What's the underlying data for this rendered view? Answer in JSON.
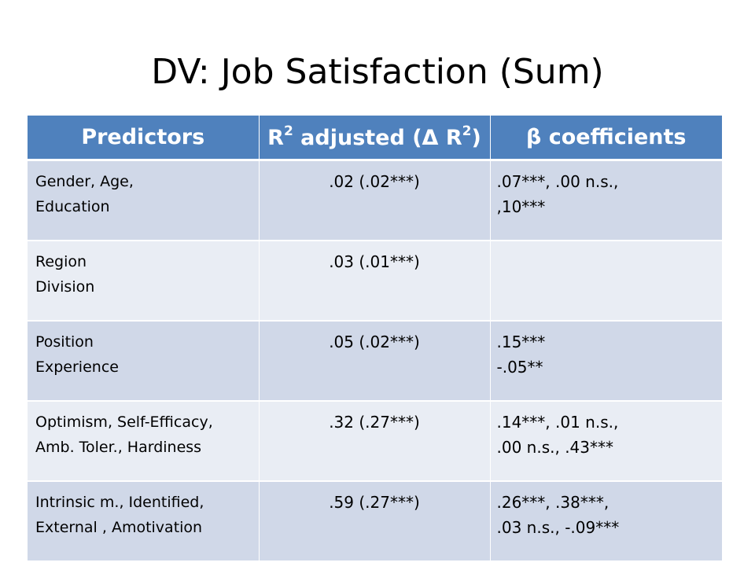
{
  "slide": {
    "title": "DV: Job Satisfaction (Sum)"
  },
  "table": {
    "headers": {
      "predictors": "Predictors",
      "r2_prefix": "R",
      "r2_sup": "2",
      "r2_middle": " adjusted (Δ R",
      "r2_sup2": "2",
      "r2_suffix": ")",
      "beta": "β coefficients"
    },
    "rows": [
      {
        "predictors": [
          "Gender, Age,",
          "Education"
        ],
        "r2": ".02 (.02***)",
        "beta": [
          ".07***, .00 n.s.,",
          ",10***"
        ]
      },
      {
        "predictors": [
          "Region",
          "Division"
        ],
        "r2": ".03 (.01***)",
        "beta": [
          "",
          ""
        ]
      },
      {
        "predictors": [
          "Position",
          "Experience"
        ],
        "r2": ".05 (.02***)",
        "beta": [
          ".15***",
          "-.05**"
        ]
      },
      {
        "predictors": [
          "Optimism, Self-Efficacy,",
          "Amb. Toler., Hardiness"
        ],
        "r2": ".32 (.27***)",
        "beta": [
          ".14***, .01 n.s.,",
          ".00 n.s., .43***"
        ]
      },
      {
        "predictors": [
          "Intrinsic m., Identified,",
          "External , Amotivation"
        ],
        "r2": ".59 (.27***)",
        "beta": [
          ".26***, .38***,",
          ".03 n.s., -.09***"
        ]
      }
    ]
  },
  "colors": {
    "header_bg": "#4f81bd",
    "row_dark": "#d0d8e8",
    "row_light": "#e9edf4"
  }
}
